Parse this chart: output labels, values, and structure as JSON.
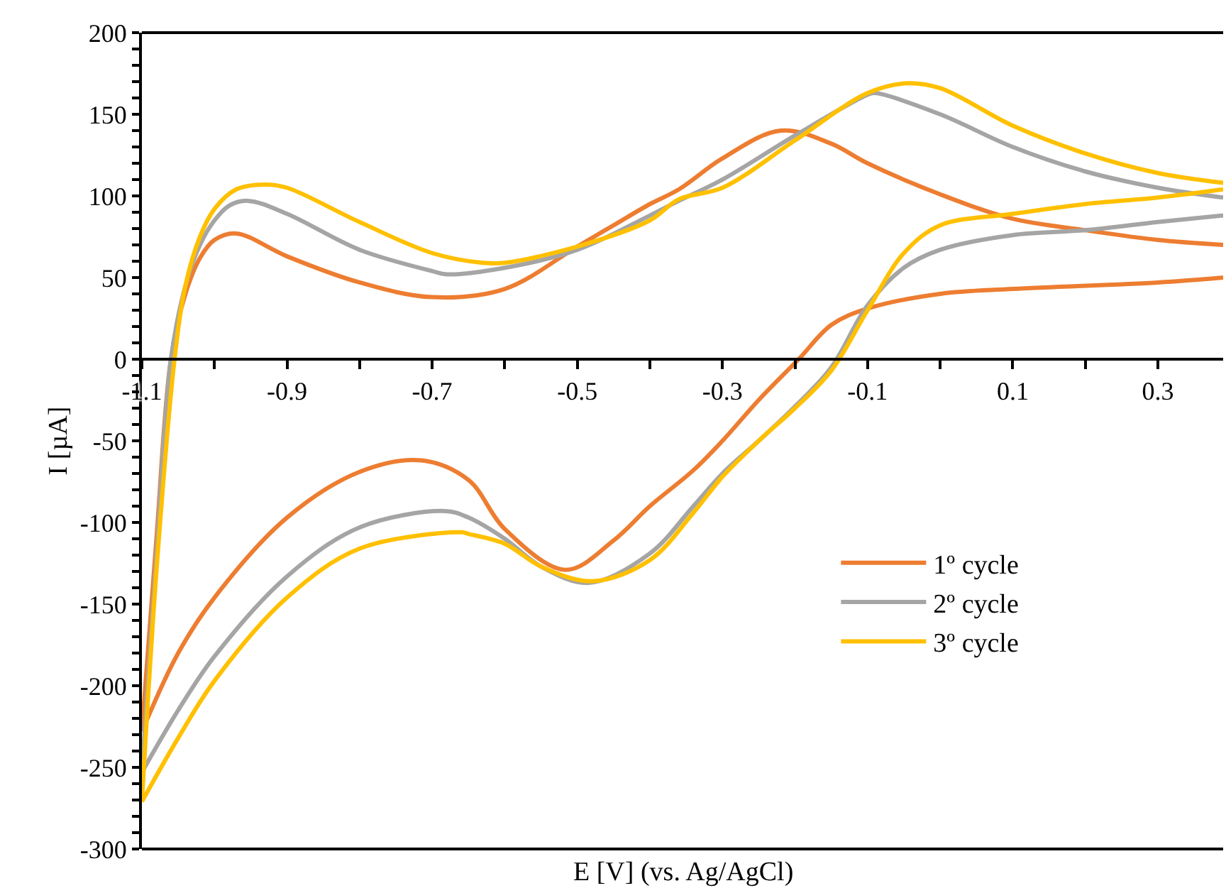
{
  "chart_data": {
    "type": "line",
    "xlabel": "E [V] (vs. Ag/AgCl)",
    "ylabel": "I [µA]",
    "xlim": [
      -1.1,
      0.39
    ],
    "ylim": [
      -300,
      200
    ],
    "xticks": [
      {
        "value": -1.1,
        "label": "-1.1"
      },
      {
        "value": -1.0,
        "label": null
      },
      {
        "value": -0.9,
        "label": "-0.9"
      },
      {
        "value": -0.8,
        "label": null
      },
      {
        "value": -0.7,
        "label": "-0.7"
      },
      {
        "value": -0.6,
        "label": null
      },
      {
        "value": -0.5,
        "label": "-0.5"
      },
      {
        "value": -0.4,
        "label": null
      },
      {
        "value": -0.3,
        "label": "-0.3"
      },
      {
        "value": -0.2,
        "label": null
      },
      {
        "value": -0.1,
        "label": "-0.1"
      },
      {
        "value": 0.0,
        "label": null
      },
      {
        "value": 0.1,
        "label": "0.1"
      },
      {
        "value": 0.2,
        "label": null
      },
      {
        "value": 0.3,
        "label": "0.3"
      }
    ],
    "yticks": [
      -300,
      {
        "value": -290,
        "label": null
      },
      {
        "value": -280,
        "label": null
      },
      {
        "value": -270,
        "label": null
      },
      {
        "value": -260,
        "label": null
      },
      -250,
      {
        "value": -240,
        "label": null
      },
      {
        "value": -230,
        "label": null
      },
      {
        "value": -220,
        "label": null
      },
      {
        "value": -210,
        "label": null
      },
      -200,
      {
        "value": -190,
        "label": null
      },
      {
        "value": -180,
        "label": null
      },
      {
        "value": -170,
        "label": null
      },
      {
        "value": -160,
        "label": null
      },
      -150,
      {
        "value": -140,
        "label": null
      },
      {
        "value": -130,
        "label": null
      },
      {
        "value": -120,
        "label": null
      },
      {
        "value": -110,
        "label": null
      },
      -100,
      {
        "value": -90,
        "label": null
      },
      {
        "value": -80,
        "label": null
      },
      {
        "value": -70,
        "label": null
      },
      {
        "value": -60,
        "label": null
      },
      -50,
      {
        "value": -40,
        "label": null
      },
      {
        "value": -30,
        "label": null
      },
      {
        "value": -20,
        "label": null
      },
      {
        "value": -10,
        "label": null
      },
      0,
      {
        "value": 10,
        "label": null
      },
      {
        "value": 20,
        "label": null
      },
      {
        "value": 30,
        "label": null
      },
      {
        "value": 40,
        "label": null
      },
      50,
      {
        "value": 60,
        "label": null
      },
      {
        "value": 70,
        "label": null
      },
      {
        "value": 80,
        "label": null
      },
      {
        "value": 90,
        "label": null
      },
      100,
      {
        "value": 110,
        "label": null
      },
      {
        "value": 120,
        "label": null
      },
      {
        "value": 130,
        "label": null
      },
      {
        "value": 140,
        "label": null
      },
      150,
      {
        "value": 160,
        "label": null
      },
      {
        "value": 170,
        "label": null
      },
      {
        "value": 180,
        "label": null
      },
      {
        "value": 190,
        "label": null
      },
      200
    ],
    "legend": "bottom right",
    "marker": "none",
    "line_style": "solid",
    "series": [
      {
        "name": "1º cycle",
        "color": "#ed7d31",
        "x": [
          -1.1,
          -1.08,
          -1.06,
          -1.04,
          -1.02,
          -1.0,
          -0.97,
          -0.9,
          -0.8,
          -0.7,
          -0.6,
          -0.5,
          -0.45,
          -0.4,
          -0.36,
          -0.3,
          -0.22,
          -0.15,
          -0.1,
          0.0,
          0.1,
          0.2,
          0.3,
          0.39
        ],
        "values": [
          -228,
          -110,
          0,
          40,
          62,
          73,
          77,
          63,
          47,
          38,
          43,
          69,
          82,
          95,
          104,
          123,
          140,
          132,
          120,
          101,
          86,
          79,
          73,
          70
        ]
      },
      {
        "color": "#ed7d31",
        "x": [
          0.39,
          0.3,
          0.1,
          0.0,
          -0.1,
          -0.15,
          -0.195,
          -0.25,
          -0.3,
          -0.34,
          -0.4,
          -0.45,
          -0.516,
          -0.6,
          -0.65,
          -0.715,
          -0.8,
          -0.9,
          -1.0,
          -1.05,
          -1.1
        ],
        "values": [
          50,
          47,
          43,
          40,
          31,
          21,
          0,
          -25,
          -50,
          -68,
          -90,
          -111,
          -129,
          -104,
          -74,
          -62,
          -69,
          -97,
          -146,
          -180,
          -228
        ]
      },
      {
        "name": "2º cycle",
        "color": "#a5a5a5",
        "x": [
          -1.1,
          -1.08,
          -1.06,
          -1.04,
          -1.02,
          -1.0,
          -0.98,
          -0.954,
          -0.9,
          -0.8,
          -0.7,
          -0.68,
          -0.6,
          -0.5,
          -0.4,
          -0.36,
          -0.3,
          -0.2,
          -0.1,
          -0.09,
          0.0,
          0.1,
          0.2,
          0.3,
          0.39
        ],
        "values": [
          -253,
          -120,
          0,
          45,
          70,
          85,
          94,
          97,
          89,
          67,
          54,
          52,
          56,
          67,
          88,
          97,
          110,
          137,
          162,
          163,
          150,
          130,
          115,
          105,
          99
        ]
      },
      {
        "color": "#a5a5a5",
        "x": [
          0.39,
          0.3,
          0.2,
          0.1,
          0.0,
          -0.05,
          -0.1,
          -0.15,
          -0.2,
          -0.25,
          -0.3,
          -0.34,
          -0.4,
          -0.484,
          -0.55,
          -0.6,
          -0.65,
          -0.682,
          -0.8,
          -0.9,
          -1.0,
          -1.05,
          -1.1
        ],
        "values": [
          88,
          84,
          79,
          76,
          67,
          56,
          33,
          -5,
          -29,
          -50,
          -70,
          -90,
          -119,
          -137,
          -127,
          -110,
          -97,
          -93,
          -103,
          -133,
          -182,
          -215,
          -253
        ]
      },
      {
        "name": "3º cycle",
        "color": "#ffc000",
        "x": [
          -1.1,
          -1.08,
          -1.055,
          -1.04,
          -1.02,
          -1.0,
          -0.97,
          -0.93,
          -0.9,
          -0.8,
          -0.7,
          -0.63,
          -0.6,
          -0.5,
          -0.4,
          -0.36,
          -0.3,
          -0.2,
          -0.1,
          -0.046,
          0.0,
          0.1,
          0.2,
          0.3,
          0.39
        ],
        "values": [
          -271,
          -130,
          0,
          45,
          75,
          92,
          104,
          107,
          105,
          84,
          65,
          59,
          59,
          69,
          85,
          98,
          105,
          134,
          163,
          169,
          166,
          143,
          126,
          114,
          108
        ]
      },
      {
        "color": "#ffc000",
        "x": [
          0.39,
          0.3,
          0.2,
          0.1,
          0.0,
          -0.05,
          -0.1,
          -0.15,
          -0.2,
          -0.25,
          -0.3,
          -0.34,
          -0.4,
          -0.479,
          -0.55,
          -0.6,
          -0.65,
          -0.659,
          -0.8,
          -0.9,
          -1.0,
          -1.05,
          -1.1
        ],
        "values": [
          104,
          99,
          95,
          89,
          82,
          65,
          30,
          -7,
          -30,
          -50,
          -72,
          -94,
          -123,
          -136,
          -127,
          -113,
          -107,
          -106,
          -116,
          -146,
          -197,
          -232,
          -271
        ]
      }
    ]
  }
}
